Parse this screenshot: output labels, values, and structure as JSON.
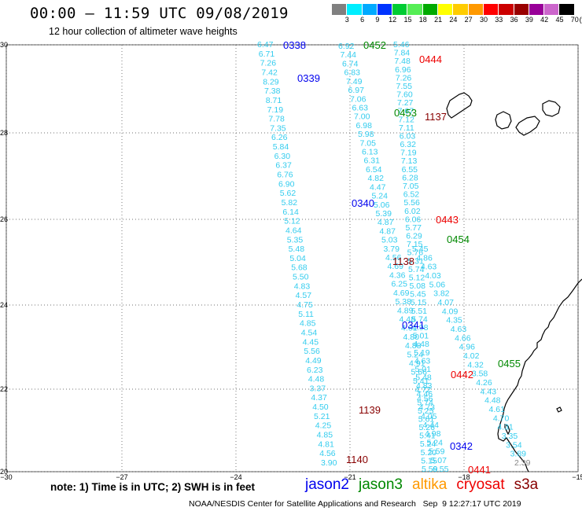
{
  "header": {
    "title": "00:00 – 11:59 UTC 09/08/2019",
    "subtitle": "12 hour collection of altimeter wave heights"
  },
  "colorbar": {
    "labels": [
      "3",
      "6",
      "9",
      "12",
      "15",
      "18",
      "21",
      "24",
      "27",
      "30",
      "33",
      "36",
      "39",
      "42",
      "45",
      "70",
      "(ft)"
    ],
    "colors": [
      "#808080",
      "#00eeff",
      "#00aaff",
      "#0033ff",
      "#00cc33",
      "#55ee55",
      "#00aa00",
      "#ffff00",
      "#ffcc00",
      "#ff9900",
      "#ff0000",
      "#cc0000",
      "#990000",
      "#990099",
      "#cc66cc",
      "#000000"
    ]
  },
  "axes": {
    "lat_labels": [
      "30",
      "28",
      "26",
      "24",
      "22",
      "20"
    ],
    "lon_labels": [
      "−30",
      "−27",
      "−24",
      "−21",
      "−18",
      "−15"
    ]
  },
  "satellite_colors": {
    "jason2": "#0000ee",
    "jason3": "#008800",
    "altika": "#ff9900",
    "cryosat": "#ee0000",
    "s3a": "#880000",
    "swh": "#33ccee"
  },
  "track_labels": [
    {
      "text": "0338",
      "sat": "jason2"
    },
    {
      "text": "0339",
      "sat": "jason2"
    },
    {
      "text": "0340",
      "sat": "jason2"
    },
    {
      "text": "0341",
      "sat": "jason2"
    },
    {
      "text": "0342",
      "sat": "jason2"
    },
    {
      "text": "0452",
      "sat": "jason3"
    },
    {
      "text": "0453",
      "sat": "jason3"
    },
    {
      "text": "0454",
      "sat": "jason3"
    },
    {
      "text": "0455",
      "sat": "jason3"
    },
    {
      "text": "0444",
      "sat": "cryosat"
    },
    {
      "text": "0443",
      "sat": "cryosat"
    },
    {
      "text": "0442",
      "sat": "cryosat"
    },
    {
      "text": "0441",
      "sat": "cryosat"
    },
    {
      "text": "1137",
      "sat": "s3a"
    },
    {
      "text": "1138",
      "sat": "s3a"
    },
    {
      "text": "1139",
      "sat": "s3a"
    },
    {
      "text": "1140",
      "sat": "s3a"
    }
  ],
  "track_a_values": [
    "6.47",
    "6.71",
    "7.26",
    "7.42",
    "8.29",
    "7.38",
    "8.71",
    "7.19",
    "7.78",
    "7.35",
    "6.26",
    "5.84",
    "6.30",
    "6.37",
    "6.76",
    "6.90",
    "5.62",
    "5.82",
    "6.14",
    "5.12",
    "4.64",
    "5.35",
    "5.48",
    "5.04",
    "5.68",
    "5.50",
    "4.83",
    "4.57",
    "4.75",
    "5.11",
    "4.85",
    "4.54",
    "4.45",
    "5.56",
    "4.49",
    "6.23",
    "4.48",
    "3.37",
    "4.37",
    "4.50",
    "5.21",
    "4.25",
    "4.85",
    "4.81",
    "4.56",
    "3.90"
  ],
  "track_b_values": [
    "6.92",
    "7.44",
    "6.74",
    "6.83",
    "7.49",
    "6.97",
    "7.06",
    "6.63",
    "7.00",
    "6.98",
    "5.98",
    "7.05",
    "6.13",
    "6.31",
    "6.54",
    "4.82",
    "4.47",
    "5.24",
    "5.06",
    "5.39",
    "4.87",
    "4.87",
    "5.03",
    "3.79",
    "4.56",
    "4.69",
    "4.36",
    "6.25",
    "4.69",
    "5.38",
    "4.89",
    "4.48",
    "4.61",
    "4.80",
    "4.88",
    "5.24",
    "4.91",
    "5.66",
    "5.41",
    "4.72",
    "4.56",
    "4.73",
    "4.05",
    "4.44",
    "4.98",
    "5.24",
    "5.59",
    "5.07",
    "6.55"
  ],
  "track_c_values": [
    "5.46",
    "7.84",
    "7.48",
    "6.96",
    "7.26",
    "7.55",
    "7.60",
    "7.27",
    "7.67",
    "7.12",
    "7.11",
    "6.03",
    "6.32",
    "7.19",
    "7.13",
    "6.55",
    "6.28",
    "7.05",
    "6.52",
    "5.56",
    "6.02",
    "6.06",
    "5.77",
    "6.29",
    "7.15",
    "5.76",
    "5.31",
    "5.74",
    "5.12",
    "5.08",
    "5.45",
    "5.15",
    "5.51",
    "5.74",
    "4.98",
    "5.01",
    "4.48",
    "5.19",
    "4.63",
    "5.01",
    "5.48",
    "4.83",
    "4.46",
    "5.74",
    "5.25",
    "5.61",
    "5.26",
    "5.41",
    "5.24",
    "5.20",
    "5.15",
    "5.59"
  ],
  "track_d_values": [
    "5.45",
    "4.86",
    "4.63",
    "4.03",
    "5.06",
    "3.82",
    "4.07",
    "4.09",
    "4.35",
    "4.63",
    "4.66",
    "4.96",
    "4.02",
    "4.32",
    "3.58",
    "4.26",
    "4.43",
    "4.48",
    "4.61",
    "4.70",
    "4.31",
    "3.35",
    "3.54",
    "3.89",
    "2.39"
  ],
  "notes": {
    "bottom": "note: 1) Time is in UTC; 2) SWH is in feet",
    "credit": "NOAA/NESDIS Center for Satellite Applications and Research   Sep  9 12:27:17 UTC 2019"
  },
  "legend": [
    {
      "label": "jason2",
      "color": "#0000ee"
    },
    {
      "label": "jason3",
      "color": "#008800"
    },
    {
      "label": "altika",
      "color": "#ff9900"
    },
    {
      "label": "cryosat",
      "color": "#ee0000"
    },
    {
      "label": "s3a",
      "color": "#880000"
    }
  ]
}
